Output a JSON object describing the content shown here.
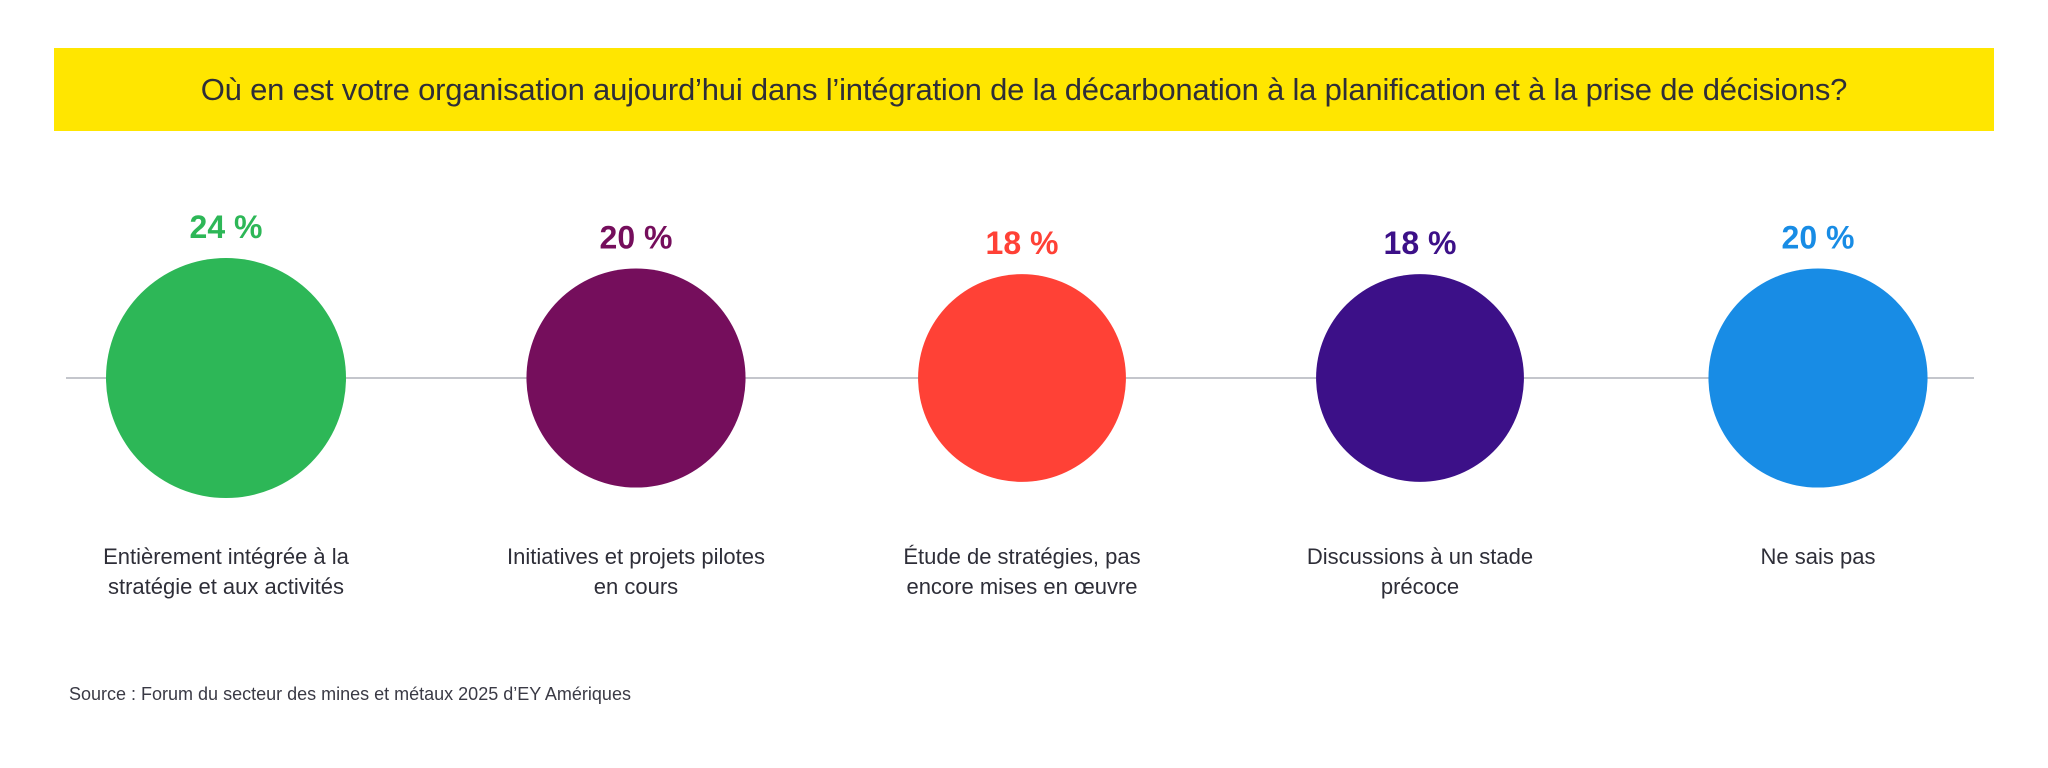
{
  "title": "Où en est votre organisation aujourd’hui dans l’intégration de la décarbonation à la planification et à la prise de décisions?",
  "source": "Source : Forum du secteur des mines et métaux 2025 d’EY Amériques",
  "colors": {
    "title_background": "#FFE600",
    "text": "#2E2E38",
    "axis_line": "#C4C6CC"
  },
  "chart_data": {
    "type": "bubble",
    "title": "Où en est votre organisation aujourd’hui dans l’intégration de la décarbonation à la planification et à la prise de décisions?",
    "unit": "%",
    "categories": [
      "Entièrement intégrée à la stratégie et aux activités",
      "Initiatives et projets pilotes en cours",
      "Étude de stratégies, pas encore mises en œuvre",
      "Discussions à un stade précoce",
      "Ne sais pas"
    ],
    "category_lines": [
      [
        "Entièrement intégrée à la",
        "stratégie et aux activités"
      ],
      [
        "Initiatives et projets pilotes",
        "en cours"
      ],
      [
        "Étude de stratégies, pas",
        "encore mises en œuvre"
      ],
      [
        "Discussions à un stade",
        "précoce"
      ],
      [
        "Ne sais pas"
      ]
    ],
    "values": [
      24,
      20,
      18,
      18,
      20
    ],
    "value_labels": [
      "24 %",
      "20 %",
      "18 %",
      "18 %",
      "20 %"
    ],
    "series_colors": [
      "#2DB757",
      "#750E5C",
      "#FF4136",
      "#3C1088",
      "#188CE5"
    ]
  }
}
